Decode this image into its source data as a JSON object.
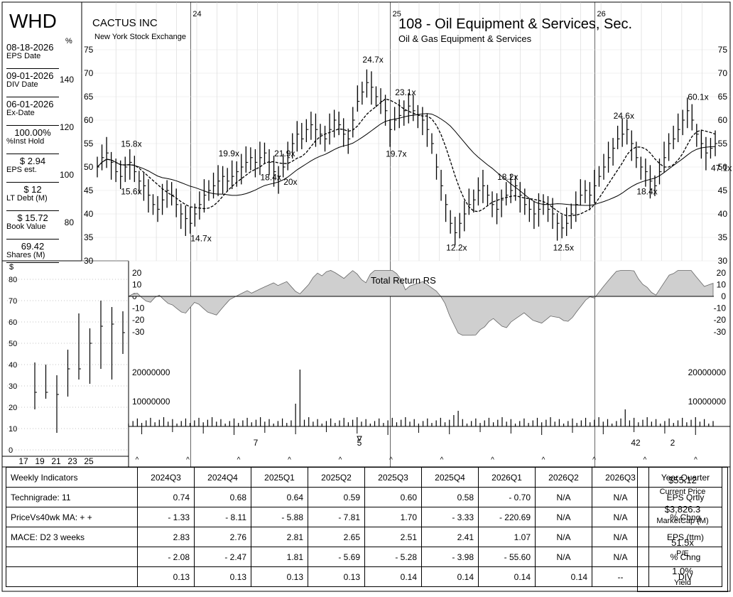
{
  "header": {
    "ticker": "WHD",
    "company": "CACTUS INC",
    "exchange": "New York Stock Exchange",
    "group": "108 - Oil Equipment & Services, Sec.",
    "subgroup": "Oil & Gas Equipment & Services",
    "pct_symbol": "%",
    "dollar_symbol": "$"
  },
  "sidebar": [
    {
      "value": "08-18-2026",
      "label": "EPS Date"
    },
    {
      "value": "09-01-2026",
      "label": "DIV Date"
    },
    {
      "value": "06-01-2026",
      "label": "Ex-Date"
    },
    {
      "value": "100.00%",
      "label": "%Inst Hold"
    },
    {
      "value": "$ 2.94",
      "label": "EPS est."
    },
    {
      "value": "$ 12",
      "label": "LT Debt (M)"
    },
    {
      "value": "$ 15.72",
      "label": "Book Value"
    },
    {
      "value": "69.42",
      "label": "Shares (M)"
    }
  ],
  "pct_axis": [
    "140",
    "120",
    "100",
    "80"
  ],
  "year_labels": [
    "24",
    "25",
    "26"
  ],
  "chart_data": {
    "type": "ohlc",
    "title": "108 - Oil Equipment & Services, Sec.",
    "price_axis": {
      "ticks": [
        30,
        35,
        40,
        45,
        50,
        55,
        60,
        65,
        70,
        75
      ],
      "range": [
        30,
        75
      ]
    },
    "weekly_closes": [
      50,
      52,
      53,
      51,
      49,
      48,
      50,
      51,
      49,
      47,
      46,
      44,
      42,
      41,
      43,
      45,
      44,
      42,
      40,
      39,
      38,
      40,
      42,
      44,
      45,
      46,
      47,
      48,
      47,
      48,
      49,
      50,
      51,
      52,
      51,
      52,
      53,
      51,
      49,
      48,
      50,
      52,
      55,
      57,
      56,
      58,
      59,
      58,
      57,
      56,
      58,
      60,
      59,
      57,
      56,
      60,
      64,
      66,
      68,
      67,
      65,
      64,
      62,
      58,
      60,
      61,
      62,
      63,
      62,
      61,
      60,
      58,
      55,
      50,
      46,
      42,
      38,
      36,
      38,
      40,
      42,
      43,
      45,
      46,
      44,
      42,
      41,
      43,
      44,
      45,
      46,
      44,
      42,
      41,
      40,
      41,
      42,
      41,
      40,
      38,
      37,
      38,
      40,
      42,
      44,
      45,
      44,
      46,
      48,
      50,
      52,
      54,
      56,
      57,
      58,
      55,
      52,
      50,
      49,
      47,
      46,
      49,
      52,
      55,
      56,
      58,
      60,
      62,
      60,
      57,
      55,
      53,
      54,
      55
    ],
    "pe_annotations": [
      {
        "label": "15.8x",
        "week": 6,
        "pos": "above"
      },
      {
        "label": "15.6x",
        "week": 6,
        "pos": "below"
      },
      {
        "label": "14.7x",
        "week": 21,
        "pos": "below"
      },
      {
        "label": "19.9x",
        "week": 27,
        "pos": "above"
      },
      {
        "label": "18.4x",
        "week": 36,
        "pos": "below"
      },
      {
        "label": "21.9x",
        "week": 39,
        "pos": "above"
      },
      {
        "label": "20x",
        "week": 41,
        "pos": "below"
      },
      {
        "label": "24.7x",
        "week": 58,
        "pos": "above"
      },
      {
        "label": "19.7x",
        "week": 63,
        "pos": "below"
      },
      {
        "label": "23.1x",
        "week": 65,
        "pos": "above"
      },
      {
        "label": "12.2x",
        "week": 76,
        "pos": "below"
      },
      {
        "label": "18.2x",
        "week": 87,
        "pos": "above"
      },
      {
        "label": "12.5x",
        "week": 99,
        "pos": "below"
      },
      {
        "label": "24.6x",
        "week": 112,
        "pos": "above"
      },
      {
        "label": "18.4x",
        "week": 117,
        "pos": "below"
      },
      {
        "label": "60.1x",
        "week": 128,
        "pos": "above"
      },
      {
        "label": "47.1x",
        "week": 133,
        "pos": "below"
      }
    ],
    "rs_label": "Total Return RS",
    "rs_axis": [
      20,
      10,
      0,
      -10,
      -20,
      -30
    ],
    "volume_axis": [
      "20000000",
      "10000000"
    ],
    "volume_markers": [
      "7",
      "5",
      "42",
      "2"
    ],
    "long_term": {
      "ylabels": [
        "80",
        "70",
        "60",
        "50",
        "40",
        "30",
        "20",
        "10",
        "0"
      ],
      "xlabels": [
        "17",
        "19",
        "21",
        "23",
        "25"
      ],
      "bars": [
        {
          "lo": 19,
          "hi": 41,
          "cl": 27
        },
        {
          "lo": 24,
          "hi": 40,
          "cl": 27
        },
        {
          "lo": 8,
          "hi": 35,
          "cl": 26
        },
        {
          "lo": 25,
          "hi": 47,
          "cl": 38
        },
        {
          "lo": 33,
          "hi": 64,
          "cl": 38
        },
        {
          "lo": 31,
          "hi": 57,
          "cl": 50
        },
        {
          "lo": 38,
          "hi": 70,
          "cl": 58
        },
        {
          "lo": 33,
          "hi": 67,
          "cl": 59
        },
        {
          "lo": 45,
          "hi": 65,
          "cl": 55
        }
      ]
    }
  },
  "indicators": {
    "headers": [
      "Weekly Indicators",
      "2024Q3",
      "2024Q4",
      "2025Q1",
      "2025Q2",
      "2025Q3",
      "2025Q4",
      "2026Q1",
      "2026Q2",
      "2026Q3",
      "Year Quarter"
    ],
    "rows": [
      [
        "Technigrade: 11",
        "0.74",
        "0.68",
        "0.64",
        "0.59",
        "0.60",
        "0.58",
        "- 0.70",
        "N/A",
        "N/A",
        "EPS Qrtly"
      ],
      [
        "PriceVs40wk MA:  + +",
        "- 1.33",
        "- 8.11",
        "- 5.88",
        "- 7.81",
        "1.70",
        "- 3.33",
        "- 220.69",
        "N/A",
        "N/A",
        "% Chng"
      ],
      [
        "MACE: D2  3 weeks",
        "2.83",
        "2.76",
        "2.81",
        "2.65",
        "2.51",
        "2.41",
        "1.07",
        "N/A",
        "N/A",
        "EPS (ttm)"
      ],
      [
        "",
        "- 2.08",
        "- 2.47",
        "1.81",
        "- 5.69",
        "- 5.28",
        "- 3.98",
        "- 55.60",
        "N/A",
        "N/A",
        "% Chng"
      ],
      [
        "",
        "0.13",
        "0.13",
        "0.13",
        "0.13",
        "0.14",
        "0.14",
        "0.14",
        "0.14",
        "--",
        "DIV"
      ]
    ]
  },
  "summary": {
    "price": "$55.12",
    "price_label": "Current Price",
    "mcap": "$3,826.3",
    "mcap_label": "MarketCap (M)",
    "pe": "51.5x",
    "pe_label": "P/E",
    "yield": "1.0%",
    "yield_label": "Yield"
  }
}
